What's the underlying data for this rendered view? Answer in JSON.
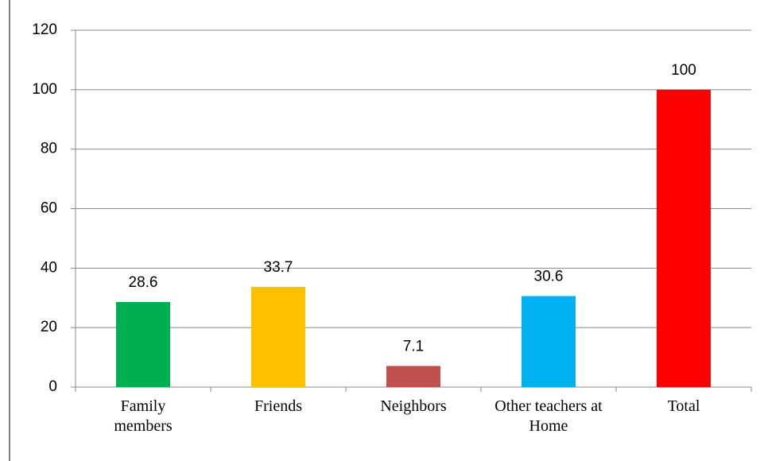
{
  "chart_data": {
    "type": "bar",
    "categories": [
      "Family members",
      "Friends",
      "Neighbors",
      "Other teachers at Home",
      "Total"
    ],
    "values": [
      28.6,
      33.7,
      7.1,
      30.6,
      100
    ],
    "colors": [
      "#00b050",
      "#ffc000",
      "#c0504d",
      "#00b0f0",
      "#ff0000"
    ],
    "ylim": [
      0,
      120
    ],
    "yticks": [
      0,
      20,
      40,
      60,
      80,
      100,
      120
    ],
    "grid": true
  }
}
